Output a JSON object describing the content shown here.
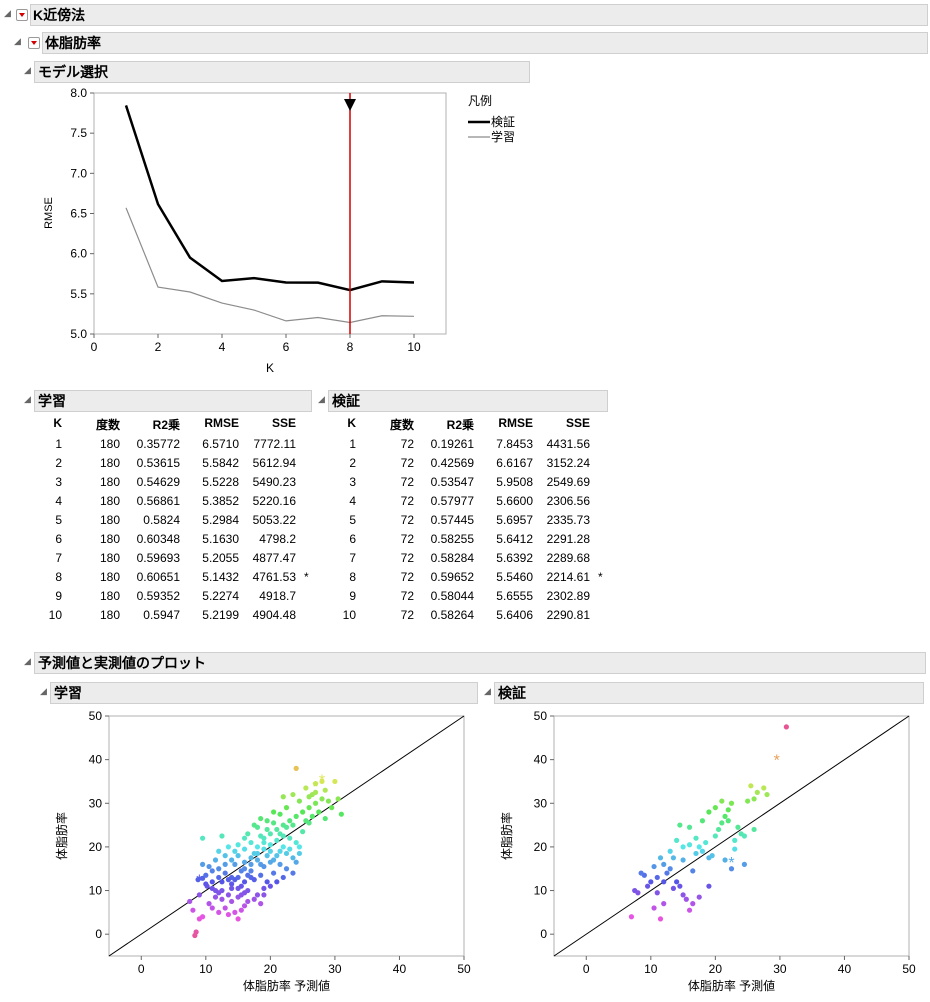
{
  "outline": {
    "root_title": "K近傍法",
    "sub_title": "体脂肪率",
    "model_section": "モデル選択",
    "train_section": "学習",
    "valid_section": "検証",
    "plot_section": "予測値と実測値のプロット",
    "plot_train": "学習",
    "plot_valid": "検証"
  },
  "legend": {
    "title": "凡例",
    "items": [
      "検証",
      "学習"
    ]
  },
  "columns": [
    "K",
    "度数",
    "R2乗",
    "RMSE",
    "SSE"
  ],
  "train_rows": [
    [
      "1",
      "180",
      "0.35772",
      "6.5710",
      "7772.11",
      ""
    ],
    [
      "2",
      "180",
      "0.53615",
      "5.5842",
      "5612.94",
      ""
    ],
    [
      "3",
      "180",
      "0.54629",
      "5.5228",
      "5490.23",
      ""
    ],
    [
      "4",
      "180",
      "0.56861",
      "5.3852",
      "5220.16",
      ""
    ],
    [
      "5",
      "180",
      "0.5824",
      "5.2984",
      "5053.22",
      ""
    ],
    [
      "6",
      "180",
      "0.60348",
      "5.1630",
      "4798.2",
      ""
    ],
    [
      "7",
      "180",
      "0.59693",
      "5.2055",
      "4877.47",
      ""
    ],
    [
      "8",
      "180",
      "0.60651",
      "5.1432",
      "4761.53",
      "*"
    ],
    [
      "9",
      "180",
      "0.59352",
      "5.2274",
      "4918.7",
      ""
    ],
    [
      "10",
      "180",
      "0.5947",
      "5.2199",
      "4904.48",
      ""
    ]
  ],
  "valid_rows": [
    [
      "1",
      "72",
      "0.19261",
      "7.8453",
      "4431.56",
      ""
    ],
    [
      "2",
      "72",
      "0.42569",
      "6.6167",
      "3152.24",
      ""
    ],
    [
      "3",
      "72",
      "0.53547",
      "5.9508",
      "2549.69",
      ""
    ],
    [
      "4",
      "72",
      "0.57977",
      "5.6600",
      "2306.56",
      ""
    ],
    [
      "5",
      "72",
      "0.57445",
      "5.6957",
      "2335.73",
      ""
    ],
    [
      "6",
      "72",
      "0.58255",
      "5.6412",
      "2291.28",
      ""
    ],
    [
      "7",
      "72",
      "0.58284",
      "5.6392",
      "2289.68",
      ""
    ],
    [
      "8",
      "72",
      "0.59652",
      "5.5460",
      "2214.61",
      "*"
    ],
    [
      "9",
      "72",
      "0.58044",
      "5.6555",
      "2302.89",
      ""
    ],
    [
      "10",
      "72",
      "0.58264",
      "5.6406",
      "2290.81",
      ""
    ]
  ],
  "colors": {
    "validation_line": "#000000",
    "training_line": "#8c8c8c",
    "selected_k_line": "#d40000"
  },
  "chart_data": [
    {
      "type": "line",
      "xlabel": "K",
      "ylabel": "RMSE",
      "xlim": [
        0,
        11
      ],
      "ylim": [
        5.0,
        8.0
      ],
      "xticks": [
        "0",
        "2",
        "4",
        "6",
        "8",
        "10"
      ],
      "yticks": [
        "5.0",
        "5.5",
        "6.0",
        "6.5",
        "7.0",
        "7.5",
        "8.0"
      ],
      "selected_k": 8,
      "x": [
        1,
        2,
        3,
        4,
        5,
        6,
        7,
        8,
        9,
        10
      ],
      "series": [
        {
          "name": "検証",
          "values": [
            7.8453,
            6.6167,
            5.9508,
            5.66,
            5.6957,
            5.6412,
            5.6392,
            5.546,
            5.6555,
            5.6406
          ]
        },
        {
          "name": "学習",
          "values": [
            6.571,
            5.5842,
            5.5228,
            5.3852,
            5.2984,
            5.163,
            5.2055,
            5.1432,
            5.2274,
            5.2199
          ]
        }
      ]
    },
    {
      "type": "scatter",
      "xlabel": "体脂肪率 予測値",
      "ylabel": "体脂肪率",
      "xlim": [
        -5,
        50
      ],
      "ylim": [
        -5,
        50
      ],
      "xticks": [
        "0",
        "10",
        "20",
        "30",
        "40",
        "50"
      ],
      "yticks": [
        "0",
        "10",
        "20",
        "30",
        "40",
        "50"
      ],
      "points": [
        [
          8.8,
          12.5
        ],
        [
          9.5,
          12.8
        ],
        [
          10.2,
          11.0
        ],
        [
          11.0,
          12.0
        ],
        [
          12.5,
          10.0
        ],
        [
          13.5,
          9.0
        ],
        [
          14.0,
          11.5
        ],
        [
          14.5,
          12.5
        ],
        [
          15.0,
          10.5
        ],
        [
          15.5,
          11.0
        ],
        [
          16.0,
          12.0
        ],
        [
          16.5,
          10.0
        ],
        [
          17.0,
          13.0
        ],
        [
          13.0,
          14.0
        ],
        [
          12.0,
          9.5
        ],
        [
          15.0,
          8.5
        ],
        [
          14.0,
          7.5
        ],
        [
          16.0,
          9.5
        ],
        [
          11.5,
          8.5
        ],
        [
          10.5,
          7.0
        ],
        [
          13.0,
          6.0
        ],
        [
          14.5,
          5.0
        ],
        [
          15.5,
          5.5
        ],
        [
          16.5,
          7.5
        ],
        [
          18.0,
          9.0
        ],
        [
          19.0,
          10.5
        ],
        [
          17.5,
          12.5
        ],
        [
          9.5,
          4.0
        ],
        [
          12.0,
          5.0
        ],
        [
          13.5,
          4.5
        ],
        [
          15.0,
          3.5
        ],
        [
          8.0,
          5.5
        ],
        [
          7.5,
          7.5
        ],
        [
          9.0,
          9.0
        ],
        [
          11.0,
          10.5
        ],
        [
          12.5,
          12.0
        ],
        [
          8.5,
          0.5
        ],
        [
          8.3,
          -0.3
        ],
        [
          10.0,
          13.5
        ],
        [
          11.0,
          14.5
        ],
        [
          12.0,
          15.0
        ],
        [
          13.0,
          16.0
        ],
        [
          14.0,
          17.0
        ],
        [
          15.0,
          18.0
        ],
        [
          16.0,
          16.5
        ],
        [
          17.0,
          17.5
        ],
        [
          18.0,
          18.5
        ],
        [
          19.0,
          19.5
        ],
        [
          20.0,
          20.5
        ],
        [
          21.0,
          21.5
        ],
        [
          22.0,
          22.5
        ],
        [
          23.0,
          22.0
        ],
        [
          24.0,
          21.0
        ],
        [
          19.5,
          18.0
        ],
        [
          21.5,
          19.0
        ],
        [
          22.5,
          18.5
        ],
        [
          23.5,
          17.5
        ],
        [
          24.5,
          20.0
        ],
        [
          18.5,
          16.0
        ],
        [
          20.5,
          17.0
        ],
        [
          19.0,
          22.0
        ],
        [
          20.0,
          23.0
        ],
        [
          21.0,
          24.0
        ],
        [
          22.0,
          25.0
        ],
        [
          23.0,
          26.0
        ],
        [
          24.0,
          27.0
        ],
        [
          25.0,
          28.0
        ],
        [
          26.0,
          29.0
        ],
        [
          27.0,
          30.0
        ],
        [
          28.0,
          31.0
        ],
        [
          18.0,
          24.5
        ],
        [
          19.5,
          26.0
        ],
        [
          21.5,
          27.5
        ],
        [
          22.5,
          29.0
        ],
        [
          24.5,
          30.5
        ],
        [
          26.5,
          32.0
        ],
        [
          28.5,
          33.0
        ],
        [
          30.0,
          35.0
        ],
        [
          24.0,
          38.0
        ],
        [
          27.0,
          34.5
        ],
        [
          28.0,
          35.0
        ],
        [
          31.0,
          27.5
        ],
        [
          29.0,
          30.5
        ],
        [
          26.0,
          25.5
        ],
        [
          25.0,
          23.5
        ],
        [
          16.0,
          22.0
        ],
        [
          17.0,
          21.0
        ],
        [
          18.0,
          20.0
        ],
        [
          19.0,
          21.0
        ],
        [
          20.0,
          19.0
        ],
        [
          9.5,
          22.0
        ],
        [
          12.5,
          22.5
        ],
        [
          13.5,
          20.0
        ],
        [
          14.5,
          19.0
        ],
        [
          16.5,
          23.0
        ],
        [
          17.5,
          25.0
        ],
        [
          18.5,
          26.5
        ],
        [
          20.5,
          28.0
        ],
        [
          22.0,
          31.5
        ],
        [
          23.5,
          32.0
        ],
        [
          25.5,
          33.5
        ],
        [
          9.5,
          16.0
        ],
        [
          10.5,
          15.5
        ],
        [
          11.5,
          17.0
        ],
        [
          14.0,
          13.0
        ],
        [
          15.5,
          14.5
        ],
        [
          17.0,
          14.5
        ],
        [
          18.5,
          13.5
        ],
        [
          19.5,
          12.0
        ],
        [
          20.5,
          14.0
        ],
        [
          21.5,
          16.0
        ],
        [
          22.5,
          15.0
        ],
        [
          23.5,
          14.0
        ],
        [
          24.5,
          18.5
        ],
        [
          15.0,
          20.5
        ],
        [
          16.0,
          19.5
        ],
        [
          17.5,
          18.5
        ],
        [
          18.5,
          22.5
        ],
        [
          19.5,
          24.0
        ],
        [
          20.5,
          25.5
        ],
        [
          21.5,
          23.0
        ],
        [
          22.5,
          24.5
        ],
        [
          23.5,
          25.0
        ],
        [
          25.5,
          26.0
        ],
        [
          26.5,
          27.0
        ],
        [
          27.5,
          28.0
        ],
        [
          28.5,
          26.5
        ],
        [
          29.5,
          29.0
        ],
        [
          27.0,
          32.5
        ],
        [
          30.5,
          31.0
        ],
        [
          26.0,
          31.5
        ],
        [
          12.0,
          19.0
        ],
        [
          13.0,
          18.0
        ],
        [
          14.5,
          16.0
        ],
        [
          16.0,
          15.0
        ],
        [
          17.0,
          16.0
        ],
        [
          18.0,
          17.0
        ],
        [
          19.0,
          15.5
        ],
        [
          20.0,
          16.5
        ],
        [
          21.0,
          18.0
        ],
        [
          22.0,
          20.0
        ],
        [
          23.0,
          19.5
        ],
        [
          24.0,
          16.5
        ],
        [
          12.0,
          13.0
        ],
        [
          13.5,
          12.5
        ],
        [
          15.0,
          13.0
        ],
        [
          16.5,
          13.5
        ],
        [
          10.0,
          11.5
        ],
        [
          11.5,
          10.0
        ],
        [
          14.0,
          10.5
        ],
        [
          15.5,
          9.0
        ],
        [
          17.5,
          8.0
        ],
        [
          18.5,
          7.0
        ],
        [
          11.0,
          6.0
        ],
        [
          9.0,
          3.5
        ],
        [
          16.0,
          6.5
        ],
        [
          19.0,
          9.0
        ],
        [
          20.0,
          11.0
        ],
        [
          21.0,
          12.0
        ],
        [
          22.0,
          13.0
        ],
        [
          12.5,
          8.0
        ]
      ],
      "highlighted": [
        [
          9.0,
          12.5
        ],
        [
          27.0,
          34.0
        ],
        [
          28.0,
          35.5
        ]
      ]
    },
    {
      "type": "scatter",
      "xlabel": "体脂肪率 予測値",
      "ylabel": "体脂肪率",
      "xlim": [
        -5,
        50
      ],
      "ylim": [
        -5,
        50
      ],
      "xticks": [
        "0",
        "10",
        "20",
        "30",
        "40",
        "50"
      ],
      "yticks": [
        "0",
        "10",
        "20",
        "30",
        "40",
        "50"
      ],
      "points": [
        [
          7.0,
          4.0
        ],
        [
          7.5,
          10.0
        ],
        [
          8.0,
          9.5
        ],
        [
          9.0,
          13.5
        ],
        [
          9.5,
          11.0
        ],
        [
          10.0,
          12.0
        ],
        [
          10.5,
          15.5
        ],
        [
          11.0,
          13.0
        ],
        [
          11.5,
          17.5
        ],
        [
          12.0,
          16.0
        ],
        [
          12.5,
          14.0
        ],
        [
          13.0,
          15.0
        ],
        [
          13.5,
          10.5
        ],
        [
          14.0,
          12.0
        ],
        [
          14.5,
          11.0
        ],
        [
          15.0,
          9.0
        ],
        [
          15.5,
          8.0
        ],
        [
          16.0,
          5.5
        ],
        [
          16.5,
          7.0
        ],
        [
          17.0,
          18.5
        ],
        [
          17.5,
          20.0
        ],
        [
          18.0,
          19.0
        ],
        [
          18.5,
          21.0
        ],
        [
          19.0,
          17.5
        ],
        [
          19.5,
          18.0
        ],
        [
          20.0,
          22.5
        ],
        [
          20.5,
          24.0
        ],
        [
          21.0,
          25.5
        ],
        [
          21.5,
          27.0
        ],
        [
          22.0,
          28.5
        ],
        [
          22.5,
          30.0
        ],
        [
          23.0,
          21.5
        ],
        [
          23.5,
          24.5
        ],
        [
          24.0,
          23.0
        ],
        [
          24.5,
          16.0
        ],
        [
          25.0,
          30.5
        ],
        [
          25.5,
          34.0
        ],
        [
          26.0,
          31.0
        ],
        [
          26.5,
          32.5
        ],
        [
          27.5,
          33.5
        ],
        [
          28.0,
          32.0
        ],
        [
          31.0,
          47.5
        ],
        [
          10.5,
          6.0
        ],
        [
          11.5,
          3.5
        ],
        [
          12.0,
          7.0
        ],
        [
          13.0,
          19.0
        ],
        [
          14.0,
          21.5
        ],
        [
          15.0,
          20.0
        ],
        [
          16.0,
          24.5
        ],
        [
          17.0,
          22.0
        ],
        [
          18.0,
          26.0
        ],
        [
          19.0,
          28.0
        ],
        [
          20.0,
          29.0
        ],
        [
          21.0,
          30.5
        ],
        [
          22.0,
          26.0
        ],
        [
          23.0,
          19.5
        ],
        [
          24.5,
          22.5
        ],
        [
          26.0,
          24.0
        ],
        [
          21.5,
          17.0
        ],
        [
          22.5,
          15.0
        ],
        [
          19.0,
          11.0
        ],
        [
          15.0,
          17.0
        ],
        [
          16.5,
          14.5
        ],
        [
          14.5,
          25.0
        ],
        [
          13.5,
          17.5
        ],
        [
          11.0,
          9.5
        ],
        [
          8.5,
          14.0
        ],
        [
          12.0,
          12.0
        ],
        [
          17.5,
          8.5
        ],
        [
          16.0,
          20.5
        ]
      ],
      "highlighted": [
        [
          29.5,
          40.0
        ],
        [
          22.5,
          16.5
        ]
      ]
    }
  ]
}
